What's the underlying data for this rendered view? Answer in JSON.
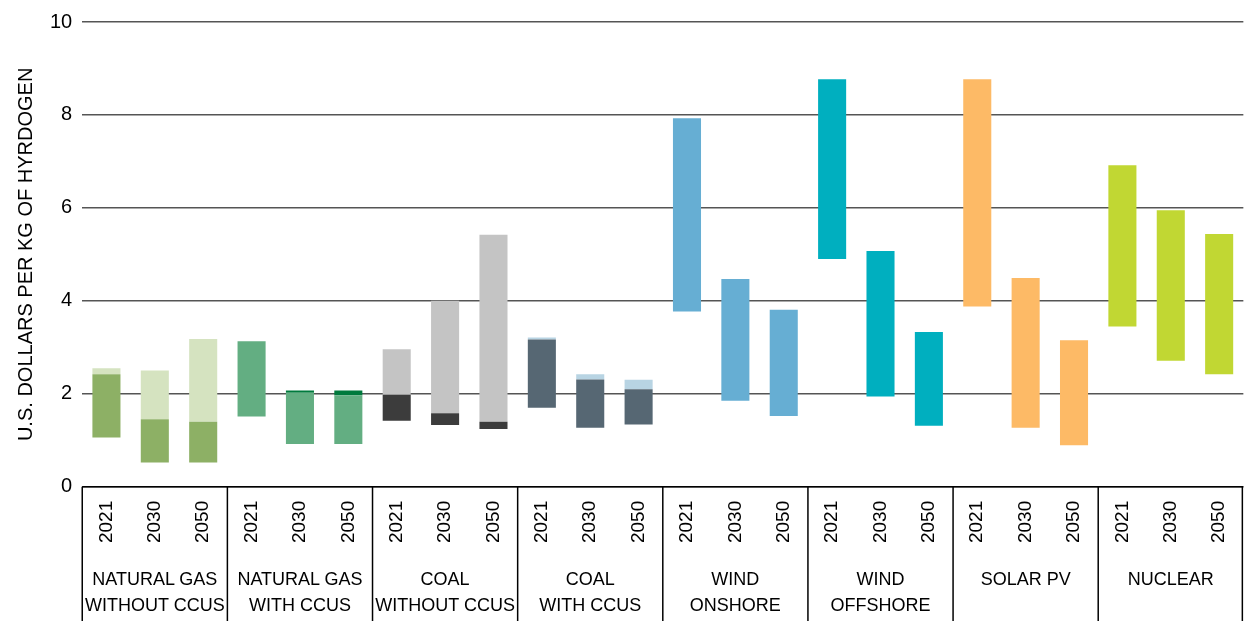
{
  "chart_data": {
    "type": "bar",
    "ylabel": "U.S. DOLLARS PER KG OF HYRDOGEN",
    "categories": [
      "2021",
      "2030",
      "2050",
      "2021",
      "2030",
      "2050",
      "2021",
      "2030",
      "2050",
      "2021",
      "2030",
      "2050",
      "2021",
      "2030",
      "2050",
      "2021",
      "2030",
      "2050",
      "2021",
      "2030",
      "2050",
      "2021",
      "2030",
      "2050"
    ],
    "annotations": [
      "NATURAL GAS\nWITHOUT CCUS",
      "NATURAL GAS\nWITH CCUS",
      "COAL\nWITHOUT CCUS",
      "COAL\nWITH CCUS",
      "WIND\nONSHORE",
      "WIND\nOFFSHORE",
      "SOLAR PV",
      "NUCLEAR"
    ],
    "series": [
      {
        "base": [
          1.06,
          0.52,
          0.52,
          1.51,
          0.92,
          0.92,
          1.42,
          1.33,
          1.24,
          1.7,
          1.27,
          1.34,
          3.77,
          1.85,
          1.52,
          4.9,
          1.94,
          1.31,
          3.88,
          1.27,
          0.89,
          3.45,
          2.71,
          2.42
        ],
        "colors": [
          "#8db065",
          "#8db065",
          "#8db065",
          "#63ae82",
          "#63ae82",
          "#63ae82",
          "#3c3c3c",
          "#3c3c3c",
          "#3c3c3c",
          "#566773",
          "#566773",
          "#566773",
          "#66aed3",
          "#66aed3",
          "#66aed3",
          "#00afbf",
          "#00afbf",
          "#00afbf",
          "#fdba66",
          "#fdba66",
          "#fdba66",
          "#c1d733",
          "#c1d733",
          "#c1d733"
        ],
        "values": [
          1.36,
          0.93,
          0.88,
          1.62,
          1.1,
          1.05,
          0.56,
          0.25,
          0.16,
          1.47,
          1.04,
          0.76,
          4.16,
          2.62,
          2.29,
          3.87,
          3.13,
          2.02,
          4.89,
          3.22,
          2.26,
          3.47,
          3.24,
          3.02
        ]
      },
      {
        "base": [
          2.42,
          1.45,
          1.4,
          null,
          2.02,
          1.97,
          1.98,
          1.58,
          1.4,
          3.17,
          2.31,
          2.1,
          null,
          null,
          null,
          null,
          null,
          null,
          null,
          null,
          null,
          null,
          null,
          null
        ],
        "colors": [
          "#d5e3c0",
          "#d5e3c0",
          "#d5e3c0",
          "#007a3d",
          "#007a3d",
          "#007a3d",
          "#c4c4c4",
          "#c4c4c4",
          "#c4c4c4",
          "#b8d4e3",
          "#b8d4e3",
          "#b8d4e3",
          "#66aed3",
          "#66aed3",
          "#66aed3",
          "#00afbf",
          "#00afbf",
          "#00afbf",
          "#fdba66",
          "#fdba66",
          "#fdba66",
          "#c1d733",
          "#c1d733",
          "#c1d733"
        ],
        "values": [
          0.13,
          1.05,
          1.78,
          null,
          0.05,
          0.1,
          0.98,
          2.42,
          4.02,
          0.04,
          0.11,
          0.2,
          null,
          null,
          null,
          null,
          null,
          null,
          null,
          null,
          null,
          null,
          null,
          null
        ]
      }
    ],
    "ylim": [
      0,
      10
    ],
    "yticks": [
      0,
      2,
      4,
      6,
      8,
      10
    ],
    "grid": "y",
    "legend": false
  }
}
